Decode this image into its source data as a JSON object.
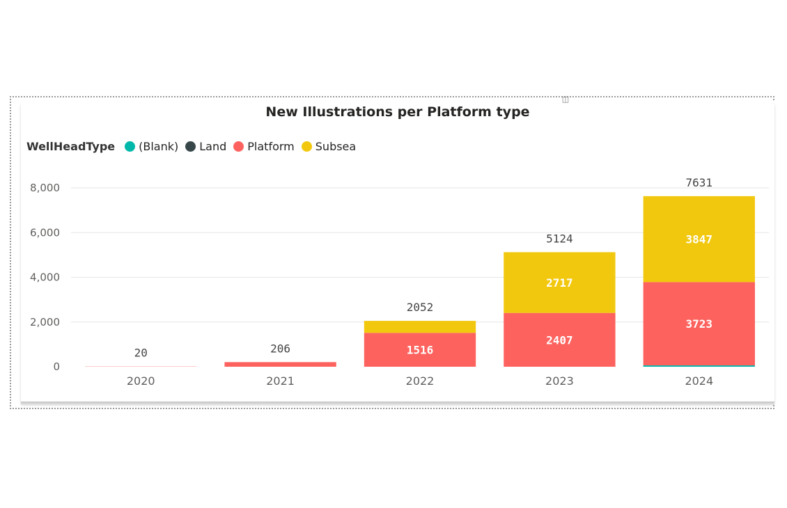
{
  "chart_data": {
    "type": "bar",
    "stacked": true,
    "title": "New Illustrations per Platform type",
    "legend_title": "WellHeadType",
    "legend_position": "top-left",
    "xlabel": "",
    "ylabel": "",
    "ylim": [
      0,
      8000
    ],
    "yticks": [
      0,
      2000,
      4000,
      6000,
      8000
    ],
    "ytick_labels": [
      "0",
      "2,000",
      "4,000",
      "6,000",
      "8,000"
    ],
    "grid": true,
    "categories": [
      "2020",
      "2021",
      "2022",
      "2023",
      "2024"
    ],
    "series": [
      {
        "name": "(Blank)",
        "color": "#01B8AA",
        "values": [
          0,
          0,
          0,
          0,
          61
        ]
      },
      {
        "name": "Land",
        "color": "#374649",
        "values": [
          0,
          0,
          0,
          0,
          0
        ]
      },
      {
        "name": "Platform",
        "color": "#FD625E",
        "values": [
          20,
          206,
          1516,
          2407,
          3723
        ]
      },
      {
        "name": "Subsea",
        "color": "#F2C80F",
        "values": [
          0,
          0,
          536,
          2717,
          3847
        ]
      }
    ],
    "segment_labels": [
      {
        "category": "2022",
        "series": "Platform",
        "text": "1516"
      },
      {
        "category": "2023",
        "series": "Platform",
        "text": "2407"
      },
      {
        "category": "2023",
        "series": "Subsea",
        "text": "2717"
      },
      {
        "category": "2024",
        "series": "Platform",
        "text": "3723"
      },
      {
        "category": "2024",
        "series": "Subsea",
        "text": "3847"
      }
    ],
    "totals": [
      "20",
      "206",
      "2052",
      "5124",
      "7631"
    ]
  }
}
